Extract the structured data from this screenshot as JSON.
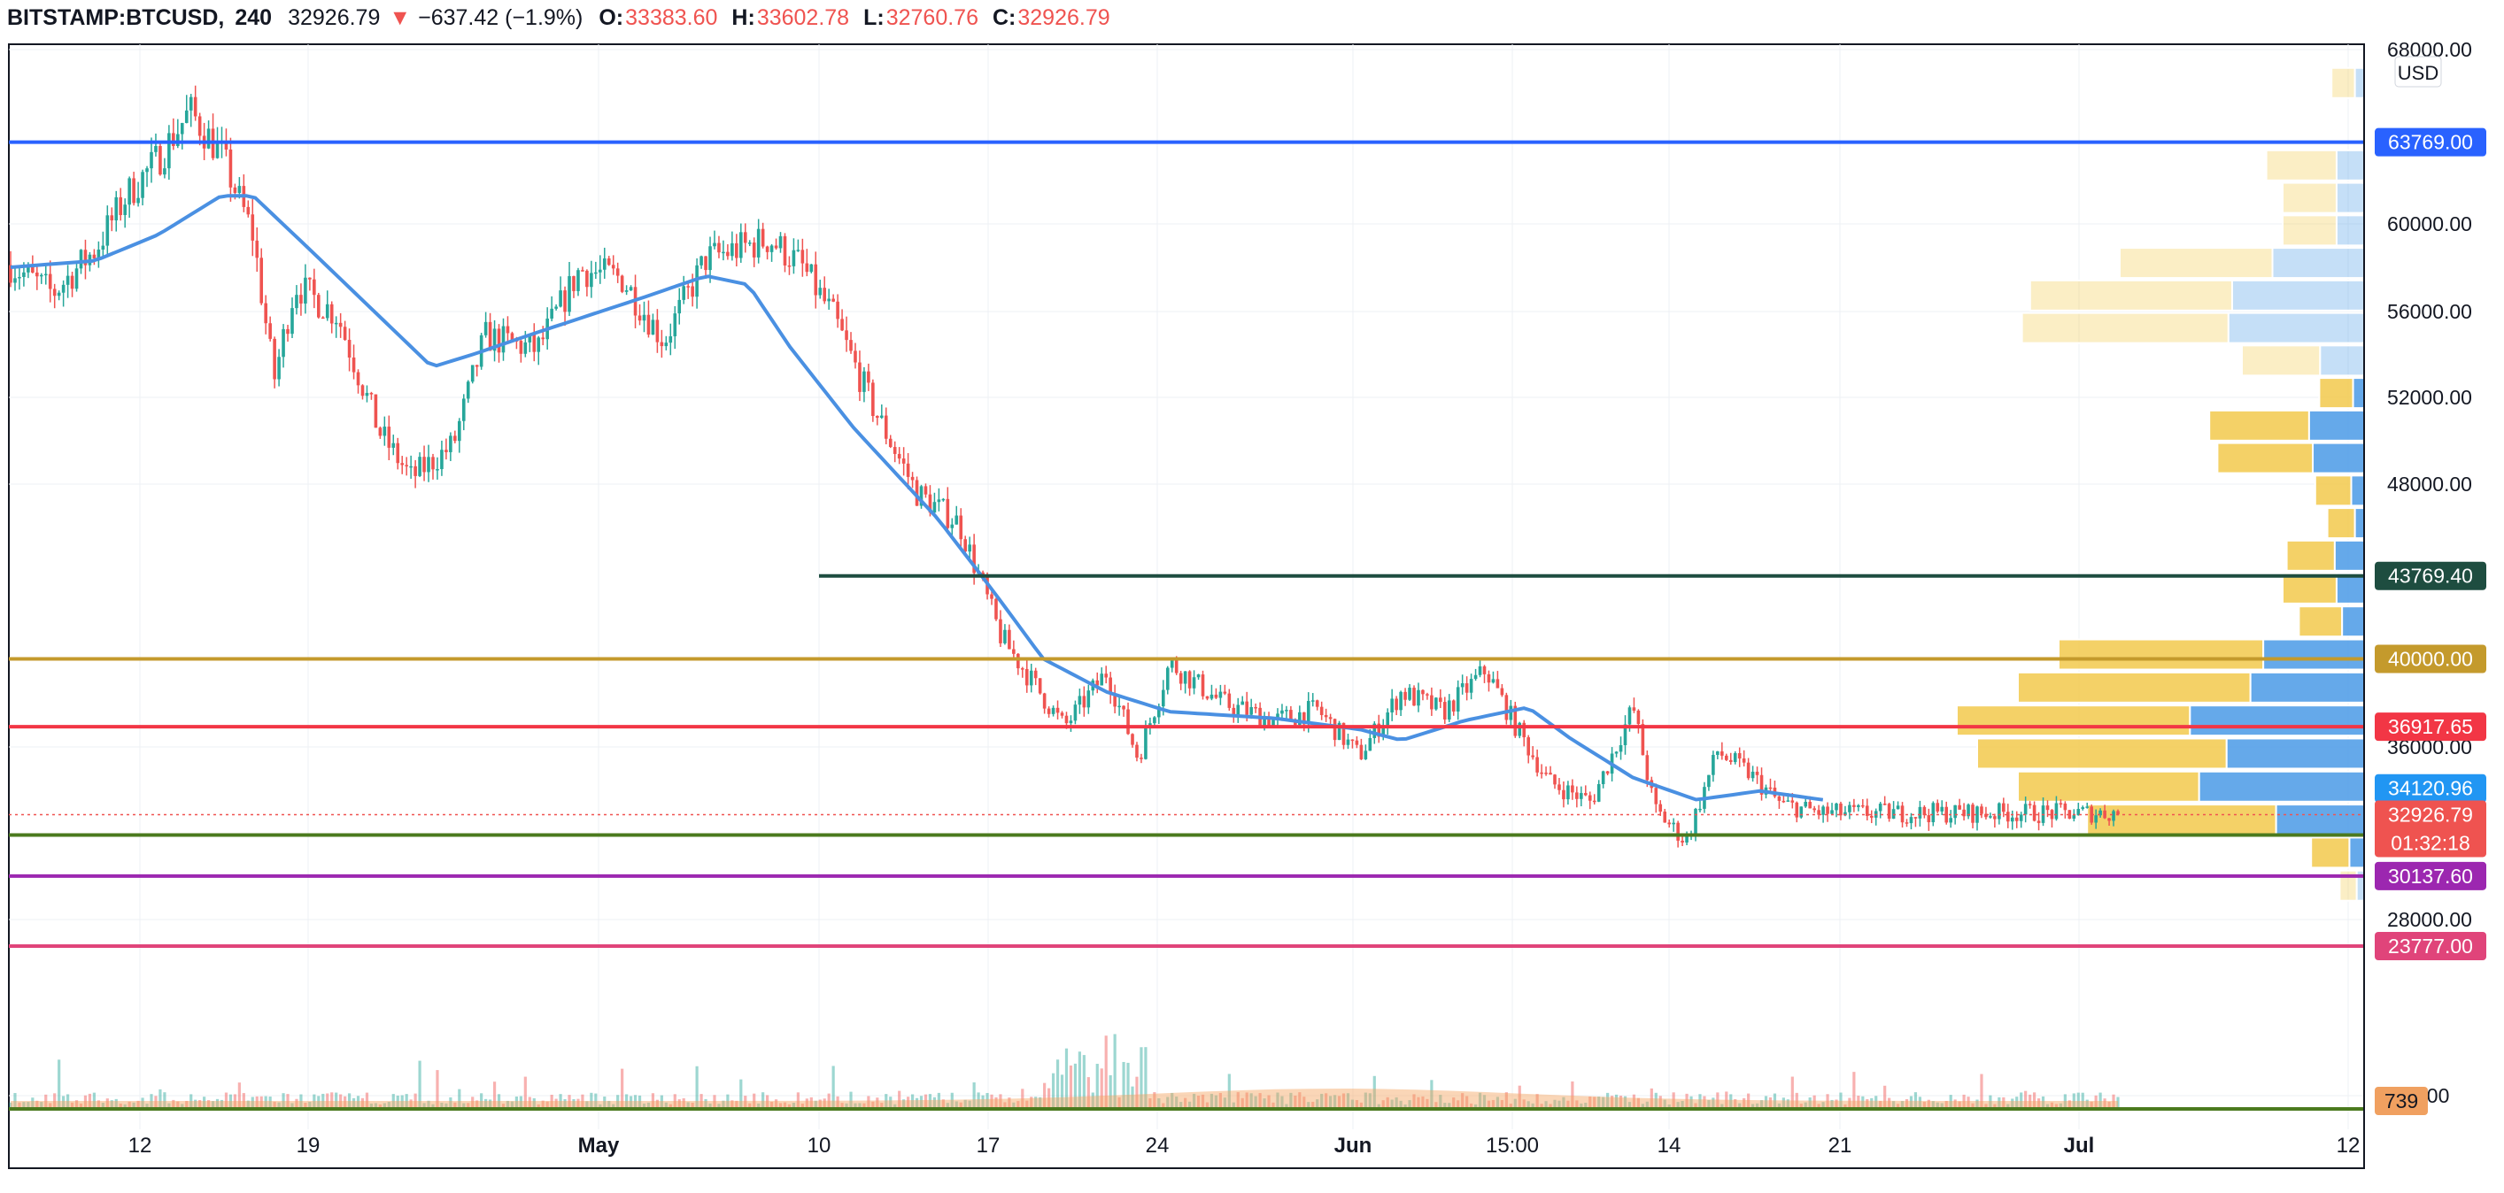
{
  "header": {
    "symbol": "BITSTAMP:BTCUSD,",
    "timeframe": "240",
    "last": "32926.79",
    "arrow": "▼",
    "change": "−637.42 (−1.9%)",
    "o_label": "O:",
    "o_value": "33383.60",
    "h_label": "H:",
    "h_value": "33602.78",
    "l_label": "L:",
    "l_value": "32760.76",
    "c_label": "C:",
    "c_value": "32926.79"
  },
  "chart_data": {
    "type": "candlestick",
    "currency": "USD",
    "y_ticks": [
      68000,
      60000,
      56000,
      52000,
      48000,
      36000,
      28000,
      0
    ],
    "y_tick_labels": [
      "68000.00",
      "60000.00",
      "56000.00",
      "52000.00",
      "48000.00",
      "36000.00",
      "28000.00",
      "0.00"
    ],
    "x_ticks": [
      "12",
      "19",
      "May",
      "10",
      "17",
      "24",
      "Jun",
      "15:00",
      "14",
      "21",
      "Jul",
      "12"
    ],
    "grid": true,
    "price_lines": [
      {
        "value": 63769,
        "label": "63769.00",
        "color": "#2962ff",
        "start": "left"
      },
      {
        "value": 43769.4,
        "label": "43769.40",
        "color": "#1e4d40",
        "start": "10"
      },
      {
        "value": 40000,
        "label": "40000.00",
        "color": "#c49a2c",
        "start": "left"
      },
      {
        "value": 36917.65,
        "label": "36917.65",
        "color": "#f23645",
        "start": "left"
      },
      {
        "value": 34120.96,
        "label": "34120.96",
        "color": "#2196f3",
        "start": "none"
      },
      {
        "value": 32000,
        "label": "32000.00",
        "color": "#4b7a1e",
        "start": "left"
      },
      {
        "value": 30137.6,
        "label": "30137.60",
        "color": "#9c27b0",
        "start": "left"
      },
      {
        "value": 23777,
        "label": "23777.00",
        "color": "#e0447a",
        "start": "left"
      }
    ],
    "current_price": {
      "value": 32926.79,
      "label": "32926.79",
      "countdown": "01:32:18",
      "color": "#ef5350"
    },
    "volume_label": {
      "label": "739",
      "color": "#f0a060"
    },
    "moving_average_color": "#4a90e2",
    "price_path": [
      [
        0,
        58100
      ],
      [
        0.02,
        56800
      ],
      [
        0.04,
        58800
      ],
      [
        0.055,
        61300
      ],
      [
        0.07,
        63000
      ],
      [
        0.085,
        65200
      ],
      [
        0.1,
        63200
      ],
      [
        0.115,
        59500
      ],
      [
        0.125,
        52800
      ],
      [
        0.135,
        57200
      ],
      [
        0.155,
        55800
      ],
      [
        0.175,
        50400
      ],
      [
        0.19,
        48300
      ],
      [
        0.21,
        49800
      ],
      [
        0.225,
        54800
      ],
      [
        0.25,
        54200
      ],
      [
        0.27,
        57900
      ],
      [
        0.29,
        57500
      ],
      [
        0.31,
        54600
      ],
      [
        0.33,
        58400
      ],
      [
        0.36,
        59300
      ],
      [
        0.375,
        58100
      ],
      [
        0.39,
        55800
      ],
      [
        0.41,
        51400
      ],
      [
        0.43,
        47600
      ],
      [
        0.45,
        46200
      ],
      [
        0.47,
        41000
      ],
      [
        0.5,
        36900
      ],
      [
        0.52,
        39400
      ],
      [
        0.535,
        35500
      ],
      [
        0.55,
        39800
      ],
      [
        0.575,
        38000
      ],
      [
        0.6,
        37200
      ],
      [
        0.62,
        37700
      ],
      [
        0.64,
        35600
      ],
      [
        0.66,
        38500
      ],
      [
        0.68,
        37600
      ],
      [
        0.7,
        39500
      ],
      [
        0.715,
        36800
      ],
      [
        0.73,
        34400
      ],
      [
        0.75,
        33500
      ],
      [
        0.77,
        37800
      ],
      [
        0.78,
        33200
      ],
      [
        0.795,
        31700
      ],
      [
        0.81,
        35800
      ],
      [
        0.825,
        34800
      ],
      [
        0.84,
        33400
      ],
      [
        0.86,
        33000
      ]
    ],
    "ma_path": [
      [
        0,
        58000
      ],
      [
        0.04,
        58300
      ],
      [
        0.07,
        59500
      ],
      [
        0.1,
        61300
      ],
      [
        0.115,
        61300
      ],
      [
        0.14,
        59000
      ],
      [
        0.17,
        56200
      ],
      [
        0.2,
        53400
      ],
      [
        0.22,
        54000
      ],
      [
        0.25,
        55000
      ],
      [
        0.3,
        56600
      ],
      [
        0.33,
        57600
      ],
      [
        0.35,
        57200
      ],
      [
        0.37,
        54300
      ],
      [
        0.4,
        50600
      ],
      [
        0.44,
        46400
      ],
      [
        0.47,
        42600
      ],
      [
        0.49,
        40000
      ],
      [
        0.52,
        38500
      ],
      [
        0.55,
        37600
      ],
      [
        0.6,
        37300
      ],
      [
        0.64,
        36800
      ],
      [
        0.66,
        36300
      ],
      [
        0.69,
        37200
      ],
      [
        0.72,
        37800
      ],
      [
        0.74,
        36400
      ],
      [
        0.77,
        34600
      ],
      [
        0.8,
        33600
      ],
      [
        0.83,
        34000
      ],
      [
        0.86,
        33600
      ]
    ],
    "volume_profile": [
      {
        "price": 66500,
        "up": 0.05,
        "down": 0.08,
        "muted": true
      },
      {
        "price": 62700,
        "up": 0.15,
        "down": 0.24,
        "muted": true
      },
      {
        "price": 61200,
        "up": 0.15,
        "down": 0.2,
        "muted": true
      },
      {
        "price": 59700,
        "up": 0.15,
        "down": 0.2,
        "muted": true
      },
      {
        "price": 58200,
        "up": 0.5,
        "down": 0.6,
        "muted": true
      },
      {
        "price": 56700,
        "up": 0.72,
        "down": 0.82,
        "muted": true
      },
      {
        "price": 55200,
        "up": 0.74,
        "down": 0.84,
        "muted": true
      },
      {
        "price": 53700,
        "up": 0.24,
        "down": 0.3,
        "muted": true
      },
      {
        "price": 52200,
        "up": 0.06,
        "down": 0.11
      },
      {
        "price": 50700,
        "up": 0.3,
        "down": 0.38
      },
      {
        "price": 49200,
        "up": 0.28,
        "down": 0.36
      },
      {
        "price": 47700,
        "up": 0.07,
        "down": 0.12
      },
      {
        "price": 46200,
        "up": 0.05,
        "down": 0.09
      },
      {
        "price": 44700,
        "up": 0.16,
        "down": 0.19
      },
      {
        "price": 43200,
        "up": 0.15,
        "down": 0.2
      },
      {
        "price": 41700,
        "up": 0.12,
        "down": 0.16
      },
      {
        "price": 40200,
        "up": 0.55,
        "down": 0.75
      },
      {
        "price": 38700,
        "up": 0.62,
        "down": 0.85
      },
      {
        "price": 37200,
        "up": 0.95,
        "down": 1.0
      },
      {
        "price": 35700,
        "up": 0.75,
        "down": 0.95
      },
      {
        "price": 34200,
        "up": 0.9,
        "down": 0.85
      },
      {
        "price": 32700,
        "up": 0.48,
        "down": 0.68
      },
      {
        "price": 31200,
        "up": 0.08,
        "down": 0.13
      },
      {
        "price": 29700,
        "up": 0.04,
        "down": 0.06,
        "muted": true
      }
    ]
  }
}
